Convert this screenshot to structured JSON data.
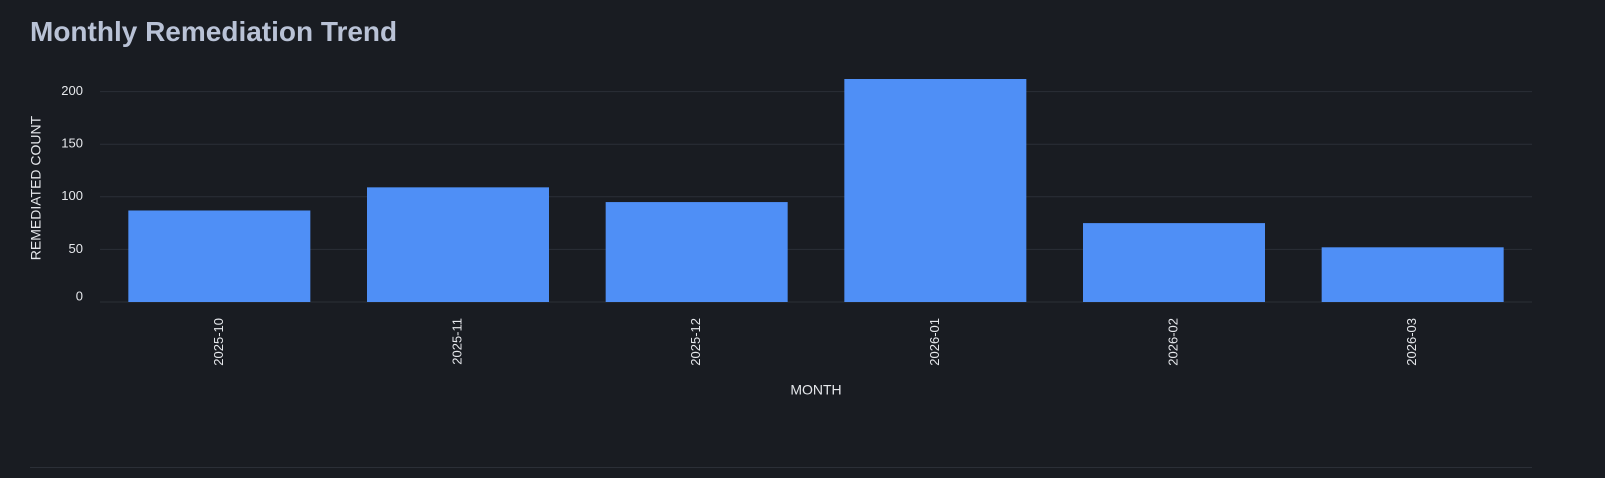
{
  "page": {
    "title": "Monthly Remediation Trend"
  },
  "colors": {
    "background": "#191c22",
    "bar": "#4f8ff6",
    "grid": "#2b2f37",
    "text": "#e6e8ec",
    "title": "#b9c2d6"
  },
  "chart_data": {
    "type": "bar",
    "title": "Monthly Remediation Trend",
    "xlabel": "MONTH",
    "ylabel": "REMEDIATED COUNT",
    "categories": [
      "2025-10",
      "2025-11",
      "2025-12",
      "2026-01",
      "2026-02",
      "2026-03"
    ],
    "values": [
      87,
      109,
      95,
      212,
      75,
      52
    ],
    "ylim": [
      0,
      212
    ],
    "yticks": [
      0,
      50,
      100,
      150,
      200
    ],
    "grid": true,
    "legend": "none"
  }
}
